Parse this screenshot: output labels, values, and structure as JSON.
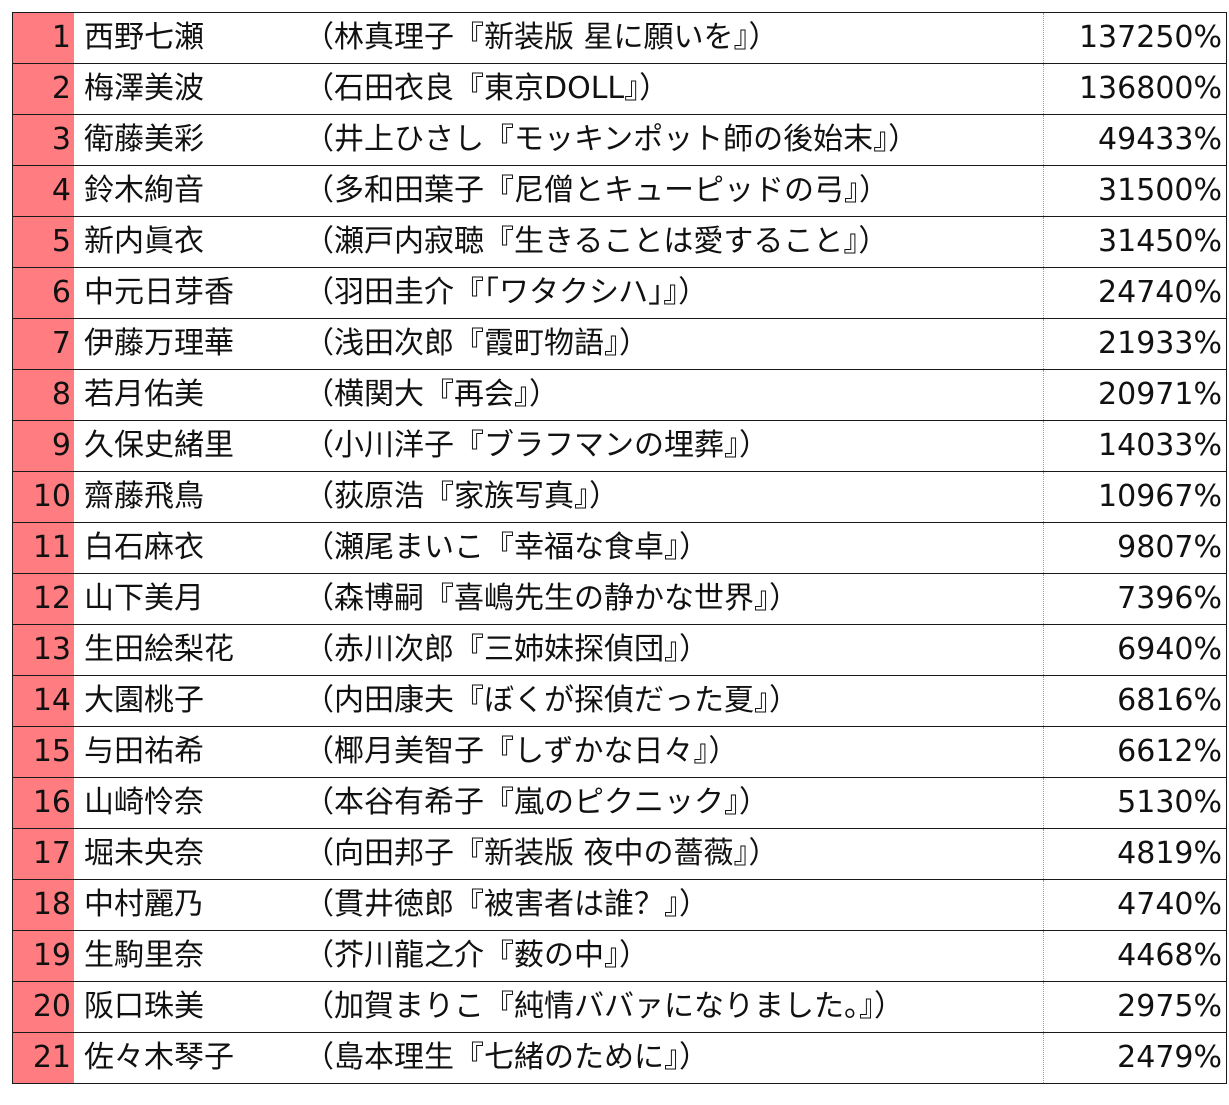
{
  "rows": [
    {
      "rank": "1",
      "name": "西野七瀬",
      "book": "（林真理子『新装版 星に願いを』）",
      "percent": "137250%"
    },
    {
      "rank": "2",
      "name": "梅澤美波",
      "book": "（石田衣良『東京DOLL』）",
      "percent": "136800%"
    },
    {
      "rank": "3",
      "name": "衛藤美彩",
      "book": "（井上ひさし『モッキンポット師の後始末』）",
      "percent": "49433%"
    },
    {
      "rank": "4",
      "name": "鈴木絢音",
      "book": "（多和田葉子『尼僧とキューピッドの弓』）",
      "percent": "31500%"
    },
    {
      "rank": "5",
      "name": "新内眞衣",
      "book": "（瀬戸内寂聴『生きることは愛すること』）",
      "percent": "31450%"
    },
    {
      "rank": "6",
      "name": "中元日芽香",
      "book": "（羽田圭介『「ワタクシハ」』）",
      "percent": "24740%"
    },
    {
      "rank": "7",
      "name": "伊藤万理華",
      "book": "（浅田次郎『霞町物語』）",
      "percent": "21933%"
    },
    {
      "rank": "8",
      "name": "若月佑美",
      "book": "（横関大『再会』）",
      "percent": "20971%"
    },
    {
      "rank": "9",
      "name": "久保史緒里",
      "book": "（小川洋子『ブラフマンの埋葬』）",
      "percent": "14033%"
    },
    {
      "rank": "10",
      "name": "齋藤飛鳥",
      "book": "（荻原浩『家族写真』）",
      "percent": "10967%"
    },
    {
      "rank": "11",
      "name": "白石麻衣",
      "book": "（瀬尾まいこ『幸福な食卓』）",
      "percent": "9807%"
    },
    {
      "rank": "12",
      "name": "山下美月",
      "book": "（森博嗣『喜嶋先生の静かな世界』）",
      "percent": "7396%"
    },
    {
      "rank": "13",
      "name": "生田絵梨花",
      "book": "（赤川次郎『三姉妹探偵団』）",
      "percent": "6940%"
    },
    {
      "rank": "14",
      "name": "大園桃子",
      "book": "（内田康夫『ぼくが探偵だった夏』）",
      "percent": "6816%"
    },
    {
      "rank": "15",
      "name": "与田祐希",
      "book": "（椰月美智子『しずかな日々』）",
      "percent": "6612%"
    },
    {
      "rank": "16",
      "name": "山崎怜奈",
      "book": "（本谷有希子『嵐のピクニック』）",
      "percent": "5130%"
    },
    {
      "rank": "17",
      "name": "堀未央奈",
      "book": "（向田邦子『新装版 夜中の薔薇』）",
      "percent": "4819%"
    },
    {
      "rank": "18",
      "name": "中村麗乃",
      "book": "（貫井徳郎『被害者は誰？』）",
      "percent": "4740%"
    },
    {
      "rank": "19",
      "name": "生駒里奈",
      "book": "（芥川龍之介『薮の中』）",
      "percent": "4468%"
    },
    {
      "rank": "20",
      "name": "阪口珠美",
      "book": "（加賀まりこ『純情ババァになりました。』）",
      "percent": "2975%"
    },
    {
      "rank": "21",
      "name": "佐々木琴子",
      "book": "（島本理生『七緒のために』）",
      "percent": "2479%"
    }
  ],
  "colors": {
    "rank_fill": "#ff7c80",
    "border": "#1a1a1a",
    "text": "#111111"
  }
}
